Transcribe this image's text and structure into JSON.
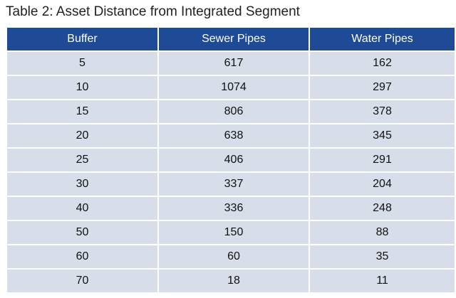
{
  "title": "Table 2: Asset Distance from Integrated Segment",
  "columns": [
    "Buffer",
    "Sewer Pipes",
    "Water Pipes"
  ],
  "rows": [
    [
      "5",
      "617",
      "162"
    ],
    [
      "10",
      "1074",
      "297"
    ],
    [
      "15",
      "806",
      "378"
    ],
    [
      "20",
      "638",
      "345"
    ],
    [
      "25",
      "406",
      "291"
    ],
    [
      "30",
      "337",
      "204"
    ],
    [
      "40",
      "336",
      "248"
    ],
    [
      "50",
      "150",
      "88"
    ],
    [
      "60",
      "60",
      "35"
    ],
    [
      "70",
      "18",
      "11"
    ]
  ],
  "colors": {
    "header_bg": "#1f4a96",
    "row_bg": "#d7dde9"
  }
}
